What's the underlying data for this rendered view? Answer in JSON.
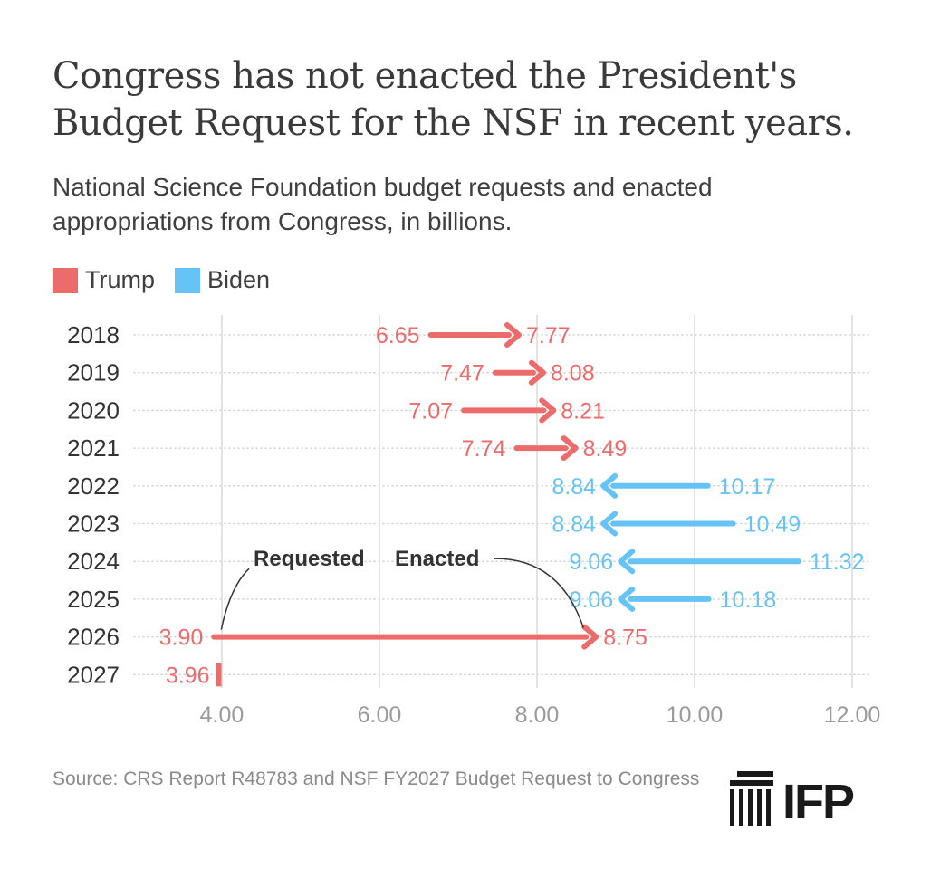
{
  "title": "Congress has not enacted the President's Budget Request for the NSF in recent years.",
  "subtitle": "National Science Foundation budget requests and enacted appropriations from Congress, in billions.",
  "legend": [
    {
      "label": "Trump",
      "color": "#ec6b6b"
    },
    {
      "label": "Biden",
      "color": "#67c2f5"
    }
  ],
  "source": "Source: CRS Report R48783 and NSF FY2027 Budget Request to Congress",
  "logo_text": "IFP",
  "chart_data": {
    "type": "arrow-range",
    "title": "Congress has not enacted the President's Budget Request for the NSF in recent years.",
    "xlabel": "",
    "ylabel": "",
    "xlim": [
      3.8,
      12.0
    ],
    "xticks": [
      4.0,
      6.0,
      8.0,
      10.0,
      12.0
    ],
    "xtick_labels": [
      "4.00",
      "6.00",
      "8.00",
      "10.00",
      "12.00"
    ],
    "rows": [
      {
        "year": "2018",
        "requested": 6.65,
        "enacted": 7.77,
        "requested_label": "6.65",
        "enacted_label": "7.77",
        "president": "Trump"
      },
      {
        "year": "2019",
        "requested": 7.47,
        "enacted": 8.08,
        "requested_label": "7.47",
        "enacted_label": "8.08",
        "president": "Trump"
      },
      {
        "year": "2020",
        "requested": 7.07,
        "enacted": 8.21,
        "requested_label": "7.07",
        "enacted_label": "8.21",
        "president": "Trump"
      },
      {
        "year": "2021",
        "requested": 7.74,
        "enacted": 8.49,
        "requested_label": "7.74",
        "enacted_label": "8.49",
        "president": "Trump"
      },
      {
        "year": "2022",
        "requested": 10.17,
        "enacted": 8.84,
        "requested_label": "10.17",
        "enacted_label": "8.84",
        "president": "Biden"
      },
      {
        "year": "2023",
        "requested": 10.49,
        "enacted": 8.84,
        "requested_label": "10.49",
        "enacted_label": "8.84",
        "president": "Biden"
      },
      {
        "year": "2024",
        "requested": 11.32,
        "enacted": 9.06,
        "requested_label": "11.32",
        "enacted_label": "9.06",
        "president": "Biden"
      },
      {
        "year": "2025",
        "requested": 10.18,
        "enacted": 9.06,
        "requested_label": "10.18",
        "enacted_label": "9.06",
        "president": "Biden"
      },
      {
        "year": "2026",
        "requested": 3.9,
        "enacted": 8.75,
        "requested_label": "3.90",
        "enacted_label": "8.75",
        "president": "Trump"
      },
      {
        "year": "2027",
        "requested": 3.96,
        "enacted": null,
        "requested_label": "3.96",
        "enacted_label": "",
        "president": "Trump"
      }
    ],
    "annotations": [
      {
        "text": "Requested",
        "points_to": "2026 requested"
      },
      {
        "text": "Enacted",
        "points_to": "2026 enacted"
      }
    ]
  }
}
